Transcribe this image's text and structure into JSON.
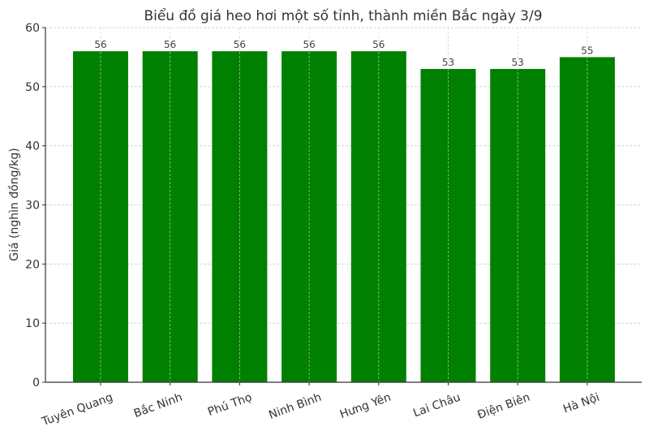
{
  "chart_data": {
    "type": "bar",
    "title": "Biểu đồ giá heo hơi một số tỉnh, thành miền Bắc ngày 3/9",
    "xlabel": "",
    "ylabel": "Giá (nghìn đồng/kg)",
    "categories": [
      "Tuyên Quang",
      "Bắc Ninh",
      "Phú Thọ",
      "Ninh Bình",
      "Hưng Yên",
      "Lai Châu",
      "Điện Biên",
      "Hà Nội"
    ],
    "values": [
      56,
      56,
      56,
      56,
      56,
      53,
      53,
      55
    ],
    "data_labels": [
      "56",
      "56",
      "56",
      "56",
      "56",
      "53",
      "53",
      "55"
    ],
    "ylim": [
      0,
      60
    ],
    "yticks": [
      0,
      10,
      20,
      30,
      40,
      50,
      60
    ],
    "grid": true,
    "legend": null,
    "bar_color": "#008000",
    "x_tick_rotation": -20
  }
}
